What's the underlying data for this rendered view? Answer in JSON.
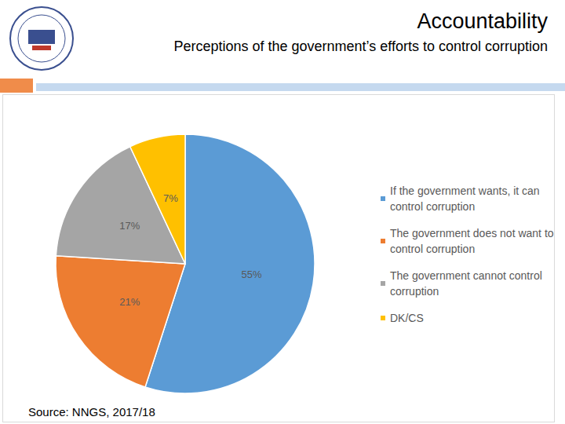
{
  "chart_data": {
    "type": "pie",
    "title": "Accountability",
    "subtitle": "Perceptions of the government’s efforts to control corruption",
    "annotations": [
      "Source: NNGS, 2017/18"
    ],
    "categories": [
      "If the government wants, it can control corruption",
      "The government does not want to control corruption",
      "The government cannot control corruption",
      "DK/CS"
    ],
    "values": [
      55,
      21,
      17,
      7
    ],
    "value_labels": [
      "55%",
      "21%",
      "17%",
      "7%"
    ],
    "colors": [
      "#5b9bd5",
      "#ed7d31",
      "#a5a5a5",
      "#ffc000"
    ],
    "data_labels": true,
    "legend": "right"
  }
}
